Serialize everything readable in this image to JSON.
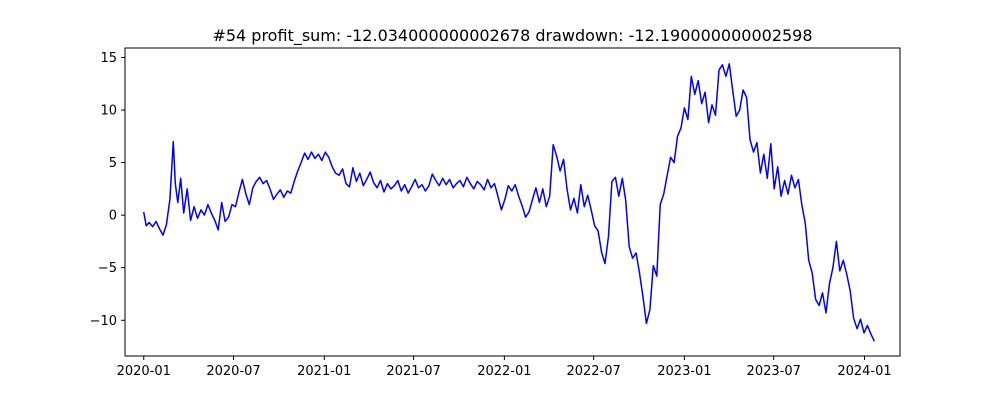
{
  "chart_data": {
    "type": "line",
    "title": "#54   profit_sum: -12.034000000002678 drawdown: -12.190000000002598",
    "xlabel": "",
    "ylabel": "",
    "x_axis_type": "date",
    "xlim": [
      "2019-11-24",
      "2024-03-13"
    ],
    "ylim": [
      -13.4,
      15.9
    ],
    "grid": false,
    "legend": "none",
    "x_ticks": [
      "2020-01-01",
      "2020-07-01",
      "2021-01-01",
      "2021-07-01",
      "2022-01-01",
      "2022-07-01",
      "2023-01-01",
      "2023-07-01",
      "2024-01-01"
    ],
    "x_tick_labels": [
      "2020-01",
      "2020-07",
      "2021-01",
      "2021-07",
      "2022-01",
      "2022-07",
      "2023-01",
      "2023-07",
      "2024-01"
    ],
    "y_ticks": [
      -10,
      -5,
      0,
      5,
      10,
      15
    ],
    "y_tick_labels": [
      "−10",
      "−5",
      "0",
      "5",
      "10",
      "15"
    ],
    "series": [
      {
        "color": "#0000ff",
        "points": [
          [
            "2020-01-01",
            0.3
          ],
          [
            "2020-01-06",
            -1.0
          ],
          [
            "2020-01-12",
            -0.7
          ],
          [
            "2020-01-19",
            -1.1
          ],
          [
            "2020-01-26",
            -0.6
          ],
          [
            "2020-02-02",
            -1.3
          ],
          [
            "2020-02-09",
            -1.9
          ],
          [
            "2020-02-16",
            -0.9
          ],
          [
            "2020-02-23",
            1.5
          ],
          [
            "2020-03-01",
            7.0
          ],
          [
            "2020-03-05",
            3.0
          ],
          [
            "2020-03-10",
            1.2
          ],
          [
            "2020-03-16",
            3.5
          ],
          [
            "2020-03-22",
            0.2
          ],
          [
            "2020-03-29",
            2.5
          ],
          [
            "2020-04-05",
            -0.5
          ],
          [
            "2020-04-12",
            0.8
          ],
          [
            "2020-04-19",
            -0.3
          ],
          [
            "2020-04-26",
            0.5
          ],
          [
            "2020-05-03",
            0.0
          ],
          [
            "2020-05-10",
            1.0
          ],
          [
            "2020-05-17",
            0.2
          ],
          [
            "2020-05-24",
            -0.5
          ],
          [
            "2020-05-31",
            -1.4
          ],
          [
            "2020-06-07",
            1.2
          ],
          [
            "2020-06-14",
            -0.6
          ],
          [
            "2020-06-21",
            -0.2
          ],
          [
            "2020-06-28",
            1.0
          ],
          [
            "2020-07-05",
            0.8
          ],
          [
            "2020-07-12",
            2.2
          ],
          [
            "2020-07-19",
            3.4
          ],
          [
            "2020-07-26",
            2.0
          ],
          [
            "2020-08-02",
            1.0
          ],
          [
            "2020-08-09",
            2.6
          ],
          [
            "2020-08-16",
            3.2
          ],
          [
            "2020-08-23",
            3.6
          ],
          [
            "2020-08-30",
            3.0
          ],
          [
            "2020-09-06",
            3.3
          ],
          [
            "2020-09-13",
            2.5
          ],
          [
            "2020-09-20",
            1.5
          ],
          [
            "2020-09-27",
            2.0
          ],
          [
            "2020-10-04",
            2.4
          ],
          [
            "2020-10-11",
            1.7
          ],
          [
            "2020-10-18",
            2.3
          ],
          [
            "2020-10-25",
            2.1
          ],
          [
            "2020-11-01",
            3.2
          ],
          [
            "2020-11-08",
            4.2
          ],
          [
            "2020-11-15",
            5.0
          ],
          [
            "2020-11-22",
            5.9
          ],
          [
            "2020-11-29",
            5.3
          ],
          [
            "2020-12-06",
            6.0
          ],
          [
            "2020-12-13",
            5.4
          ],
          [
            "2020-12-20",
            5.8
          ],
          [
            "2020-12-27",
            5.2
          ],
          [
            "2021-01-03",
            6.0
          ],
          [
            "2021-01-10",
            5.5
          ],
          [
            "2021-01-17",
            4.6
          ],
          [
            "2021-01-24",
            4.0
          ],
          [
            "2021-01-31",
            3.8
          ],
          [
            "2021-02-07",
            4.4
          ],
          [
            "2021-02-14",
            3.0
          ],
          [
            "2021-02-21",
            2.7
          ],
          [
            "2021-02-28",
            4.5
          ],
          [
            "2021-03-07",
            3.2
          ],
          [
            "2021-03-14",
            4.0
          ],
          [
            "2021-03-21",
            2.8
          ],
          [
            "2021-03-28",
            3.4
          ],
          [
            "2021-04-04",
            4.1
          ],
          [
            "2021-04-11",
            3.1
          ],
          [
            "2021-04-18",
            2.6
          ],
          [
            "2021-04-25",
            3.3
          ],
          [
            "2021-05-02",
            2.2
          ],
          [
            "2021-05-09",
            3.0
          ],
          [
            "2021-05-16",
            2.5
          ],
          [
            "2021-05-23",
            2.8
          ],
          [
            "2021-05-30",
            3.3
          ],
          [
            "2021-06-06",
            2.3
          ],
          [
            "2021-06-13",
            2.9
          ],
          [
            "2021-06-20",
            2.1
          ],
          [
            "2021-06-27",
            2.7
          ],
          [
            "2021-07-04",
            3.4
          ],
          [
            "2021-07-11",
            2.6
          ],
          [
            "2021-07-18",
            2.9
          ],
          [
            "2021-07-25",
            2.3
          ],
          [
            "2021-08-01",
            2.8
          ],
          [
            "2021-08-08",
            3.9
          ],
          [
            "2021-08-15",
            3.3
          ],
          [
            "2021-08-22",
            2.8
          ],
          [
            "2021-08-29",
            3.5
          ],
          [
            "2021-09-05",
            2.9
          ],
          [
            "2021-09-12",
            3.4
          ],
          [
            "2021-09-19",
            2.6
          ],
          [
            "2021-09-26",
            3.0
          ],
          [
            "2021-10-03",
            3.3
          ],
          [
            "2021-10-10",
            2.7
          ],
          [
            "2021-10-17",
            3.6
          ],
          [
            "2021-10-24",
            3.0
          ],
          [
            "2021-10-31",
            2.5
          ],
          [
            "2021-11-07",
            3.2
          ],
          [
            "2021-11-14",
            2.9
          ],
          [
            "2021-11-21",
            2.4
          ],
          [
            "2021-11-28",
            3.4
          ],
          [
            "2021-12-05",
            2.6
          ],
          [
            "2021-12-12",
            3.0
          ],
          [
            "2021-12-19",
            1.8
          ],
          [
            "2021-12-26",
            0.5
          ],
          [
            "2022-01-02",
            1.5
          ],
          [
            "2022-01-09",
            2.8
          ],
          [
            "2022-01-16",
            2.3
          ],
          [
            "2022-01-23",
            2.9
          ],
          [
            "2022-01-30",
            1.8
          ],
          [
            "2022-02-06",
            0.9
          ],
          [
            "2022-02-13",
            -0.2
          ],
          [
            "2022-02-20",
            0.3
          ],
          [
            "2022-02-27",
            1.5
          ],
          [
            "2022-03-06",
            2.6
          ],
          [
            "2022-03-13",
            1.2
          ],
          [
            "2022-03-20",
            2.5
          ],
          [
            "2022-03-27",
            0.8
          ],
          [
            "2022-04-03",
            1.8
          ],
          [
            "2022-04-10",
            6.7
          ],
          [
            "2022-04-17",
            5.6
          ],
          [
            "2022-04-24",
            4.2
          ],
          [
            "2022-05-01",
            5.3
          ],
          [
            "2022-05-08",
            2.5
          ],
          [
            "2022-05-15",
            0.5
          ],
          [
            "2022-05-22",
            1.6
          ],
          [
            "2022-05-29",
            0.2
          ],
          [
            "2022-06-05",
            2.9
          ],
          [
            "2022-06-12",
            0.8
          ],
          [
            "2022-06-19",
            1.9
          ],
          [
            "2022-06-26",
            0.5
          ],
          [
            "2022-07-03",
            -1.0
          ],
          [
            "2022-07-10",
            -1.5
          ],
          [
            "2022-07-17",
            -3.5
          ],
          [
            "2022-07-24",
            -4.6
          ],
          [
            "2022-07-31",
            -2.0
          ],
          [
            "2022-08-07",
            3.2
          ],
          [
            "2022-08-14",
            3.6
          ],
          [
            "2022-08-21",
            1.8
          ],
          [
            "2022-08-28",
            3.5
          ],
          [
            "2022-09-04",
            1.4
          ],
          [
            "2022-09-11",
            -3.0
          ],
          [
            "2022-09-18",
            -4.1
          ],
          [
            "2022-09-25",
            -3.6
          ],
          [
            "2022-10-02",
            -5.5
          ],
          [
            "2022-10-09",
            -7.8
          ],
          [
            "2022-10-16",
            -10.3
          ],
          [
            "2022-10-23",
            -9.0
          ],
          [
            "2022-10-30",
            -4.8
          ],
          [
            "2022-11-06",
            -5.8
          ],
          [
            "2022-11-13",
            1.0
          ],
          [
            "2022-11-20",
            2.0
          ],
          [
            "2022-11-27",
            3.8
          ],
          [
            "2022-12-04",
            5.5
          ],
          [
            "2022-12-11",
            5.0
          ],
          [
            "2022-12-18",
            7.5
          ],
          [
            "2022-12-25",
            8.3
          ],
          [
            "2023-01-01",
            10.2
          ],
          [
            "2023-01-08",
            9.1
          ],
          [
            "2023-01-15",
            13.2
          ],
          [
            "2023-01-22",
            11.5
          ],
          [
            "2023-01-29",
            12.8
          ],
          [
            "2023-02-05",
            10.6
          ],
          [
            "2023-02-12",
            11.7
          ],
          [
            "2023-02-19",
            8.8
          ],
          [
            "2023-02-26",
            10.5
          ],
          [
            "2023-03-05",
            9.5
          ],
          [
            "2023-03-12",
            13.8
          ],
          [
            "2023-03-19",
            14.3
          ],
          [
            "2023-03-26",
            13.2
          ],
          [
            "2023-04-02",
            14.4
          ],
          [
            "2023-04-09",
            11.8
          ],
          [
            "2023-04-16",
            9.4
          ],
          [
            "2023-04-23",
            10.0
          ],
          [
            "2023-04-30",
            11.9
          ],
          [
            "2023-05-07",
            11.2
          ],
          [
            "2023-05-14",
            7.2
          ],
          [
            "2023-05-21",
            6.0
          ],
          [
            "2023-05-28",
            6.9
          ],
          [
            "2023-06-04",
            4.0
          ],
          [
            "2023-06-11",
            5.8
          ],
          [
            "2023-06-18",
            3.5
          ],
          [
            "2023-06-25",
            6.8
          ],
          [
            "2023-07-02",
            2.5
          ],
          [
            "2023-07-09",
            4.6
          ],
          [
            "2023-07-16",
            1.8
          ],
          [
            "2023-07-23",
            3.3
          ],
          [
            "2023-07-30",
            2.0
          ],
          [
            "2023-08-06",
            3.8
          ],
          [
            "2023-08-13",
            2.6
          ],
          [
            "2023-08-20",
            3.4
          ],
          [
            "2023-08-27",
            1.0
          ],
          [
            "2023-09-03",
            -0.8
          ],
          [
            "2023-09-10",
            -4.3
          ],
          [
            "2023-09-17",
            -5.5
          ],
          [
            "2023-09-24",
            -8.0
          ],
          [
            "2023-10-01",
            -8.6
          ],
          [
            "2023-10-08",
            -7.4
          ],
          [
            "2023-10-15",
            -9.3
          ],
          [
            "2023-10-22",
            -6.5
          ],
          [
            "2023-10-29",
            -5.0
          ],
          [
            "2023-11-05",
            -2.5
          ],
          [
            "2023-11-12",
            -5.3
          ],
          [
            "2023-11-19",
            -4.3
          ],
          [
            "2023-11-26",
            -5.6
          ],
          [
            "2023-12-03",
            -7.2
          ],
          [
            "2023-12-10",
            -9.8
          ],
          [
            "2023-12-17",
            -10.8
          ],
          [
            "2023-12-24",
            -9.9
          ],
          [
            "2023-12-31",
            -11.2
          ],
          [
            "2024-01-07",
            -10.5
          ],
          [
            "2024-01-14",
            -11.3
          ],
          [
            "2024-01-21",
            -12.0
          ]
        ]
      }
    ]
  }
}
